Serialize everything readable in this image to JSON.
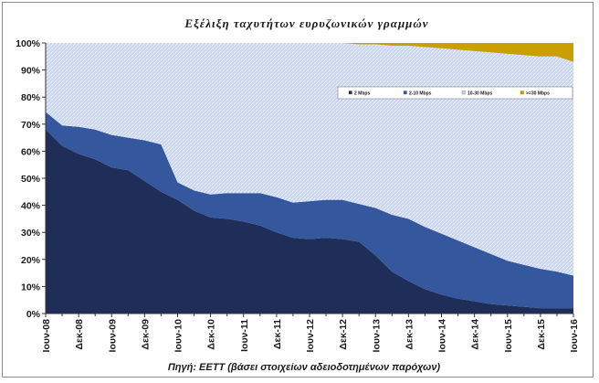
{
  "chart_data": {
    "type": "area",
    "stacked": true,
    "title": "Εξέλιξη ταχυτήτων ευρυζωνικών γραμμών",
    "source": "Πηγή: ΕΕΤΤ (βάσει στοιχείων αδειοδοτημένων  παρόχων)",
    "ylim": [
      0,
      100
    ],
    "yticks": [
      "0%",
      "10%",
      "20%",
      "30%",
      "40%",
      "50%",
      "60%",
      "70%",
      "80%",
      "90%",
      "100%"
    ],
    "xtick_labels": [
      "Ιουν-08",
      "Δεκ-08",
      "Ιουν-09",
      "Δεκ-09",
      "Ιουν-10",
      "Δεκ-10",
      "Ιουν-11",
      "Δεκ-11",
      "Ιουν-12",
      "Δεκ-12",
      "Ιουν-13",
      "Δεκ-13",
      "Ιουν-14",
      "Δεκ-14",
      "Ιουν-15",
      "Δεκ-15",
      "Ιουν-16"
    ],
    "x": [
      "2008Q2",
      "2008Q3",
      "2008Q4",
      "2009Q1",
      "2009Q2",
      "2009Q3",
      "2009Q4",
      "2010Q1",
      "2010Q2",
      "2010Q3",
      "2010Q4",
      "2011Q1",
      "2011Q2",
      "2011Q3",
      "2011Q4",
      "2012Q1",
      "2012Q2",
      "2012Q3",
      "2012Q4",
      "2013Q1",
      "2013Q2",
      "2013Q3",
      "2013Q4",
      "2014Q1",
      "2014Q2",
      "2014Q3",
      "2014Q4",
      "2015Q1",
      "2015Q2",
      "2015Q3",
      "2015Q4",
      "2016Q1",
      "2016Q2"
    ],
    "grid": false,
    "legend_position": "top-right",
    "series": [
      {
        "name": "2 Mbps",
        "color": "#1f2d59",
        "values": [
          68,
          62,
          59,
          57,
          54,
          53,
          49,
          45,
          42,
          38,
          35.5,
          35,
          34,
          32.5,
          30,
          28,
          27.5,
          28,
          27.5,
          26.5,
          21.5,
          15.5,
          12,
          9,
          7,
          5.5,
          4.5,
          3.5,
          3,
          2.5,
          2,
          2,
          2
        ]
      },
      {
        "name": "2-10 Mbps",
        "color": "#34579e",
        "values": [
          6.5,
          7.5,
          10,
          11,
          12,
          12,
          15,
          17.5,
          6.5,
          7.5,
          8.5,
          9.5,
          10.5,
          12,
          13,
          13,
          14,
          14,
          14.5,
          14,
          17.5,
          21,
          23,
          23,
          22.5,
          21.5,
          20,
          18.5,
          16.5,
          15.5,
          14.5,
          13.5,
          12
        ]
      },
      {
        "name": "10-30 Mbps",
        "color": "#c3d0ea",
        "values": [
          25.5,
          30.5,
          31,
          32,
          34,
          35,
          36,
          37.5,
          51.5,
          54.5,
          56,
          55.5,
          55.5,
          55.5,
          57,
          59,
          58.5,
          58,
          58,
          59,
          60.5,
          62.5,
          64,
          66.5,
          68.5,
          70.5,
          72.5,
          74.5,
          76.5,
          77.5,
          78.5,
          79.5,
          79
        ]
      },
      {
        "name": ">=30 Mbps",
        "color": "#c9a000",
        "values": [
          0,
          0,
          0,
          0,
          0,
          0,
          0,
          0,
          0,
          0,
          0,
          0,
          0,
          0,
          0,
          0,
          0,
          0,
          0,
          0.5,
          0.5,
          1,
          1,
          1.5,
          2,
          2.5,
          3,
          3.5,
          4,
          4.5,
          5,
          5,
          7
        ]
      }
    ]
  }
}
